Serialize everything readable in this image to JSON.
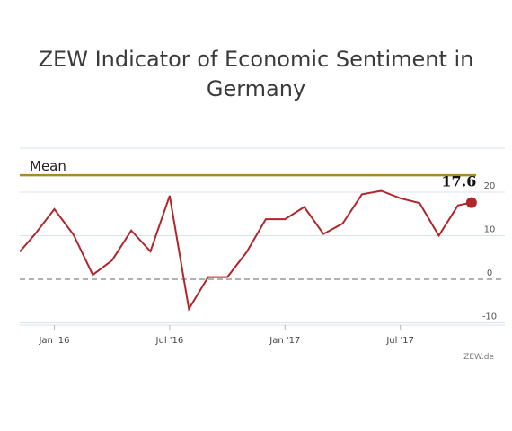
{
  "chart_data": {
    "type": "line",
    "title_lines": [
      "ZEW Indicator of Economic Sentiment in",
      "Germany"
    ],
    "mean_label": "Mean",
    "mean_value": 23.9,
    "last_value_label": "17.6",
    "source": "ZEW.de",
    "ylim": [
      -11,
      31
    ],
    "yticks": [
      {
        "value": 20,
        "label": "20"
      },
      {
        "value": 10,
        "label": "10"
      },
      {
        "value": 0,
        "label": "0"
      },
      {
        "value": -10,
        "label": "-10"
      }
    ],
    "xticks": [
      {
        "index": 1.5,
        "label": "Jan '16"
      },
      {
        "index": 7.5,
        "label": "Jul '16"
      },
      {
        "index": 13.5,
        "label": "Jan '17"
      },
      {
        "index": 19.5,
        "label": "Jul '17"
      }
    ],
    "xlim": [
      -0.3,
      23.3
    ],
    "grid": true,
    "series": [
      {
        "color": "#b0262b",
        "x": [
          -0.3,
          0.5,
          1.5,
          2.5,
          3.5,
          4.5,
          5.5,
          6.5,
          7.5,
          8.5,
          9.5,
          10.5,
          11.5,
          12.5,
          13.5,
          14.5,
          15.5,
          16.5,
          17.5,
          18.5,
          19.5,
          20.5,
          21.5,
          22.5
        ],
        "values": [
          6.3,
          10.4,
          16.1,
          10.2,
          1.0,
          4.3,
          11.2,
          6.4,
          19.2,
          -6.8,
          0.5,
          0.5,
          6.2,
          13.8,
          13.8,
          16.6,
          10.4,
          12.8,
          19.5,
          20.3,
          18.6,
          17.5,
          10.0,
          17.0
        ]
      }
    ],
    "last_point": {
      "x": 23.2,
      "y": 17.6
    },
    "colors": {
      "line": "#b0262b",
      "mean": "#a48a2a",
      "grid": "#d7e3ec",
      "zero": "#999999"
    }
  }
}
